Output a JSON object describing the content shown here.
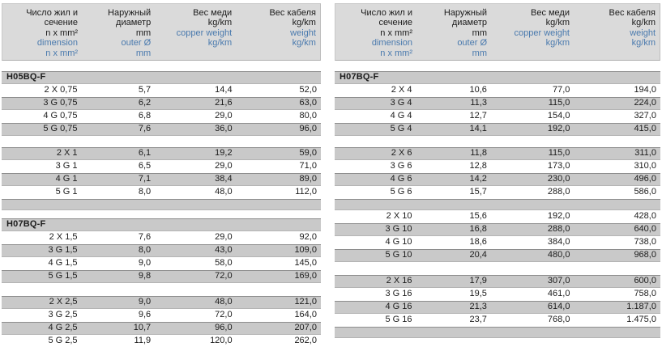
{
  "colors": {
    "blue_text": "#4a7aae",
    "row_gray": "#c9c9c9",
    "header_gray": "#dadada",
    "text_black": "#1b1b1b"
  },
  "header": {
    "columns": [
      {
        "black": [
          "Число жил и",
          "сечение",
          "n x mm²"
        ],
        "blue": [
          "dimension",
          "n x mm²"
        ]
      },
      {
        "black": [
          "Наружный",
          "диаметр",
          "mm"
        ],
        "blue": [
          "outer Ø",
          "mm"
        ]
      },
      {
        "black": [
          "Вес меди",
          "kg/km"
        ],
        "blue": [
          "copper weight",
          "kg/km"
        ]
      },
      {
        "black": [
          "Вес кабеля",
          "kg/km"
        ],
        "blue": [
          "weight",
          "kg/km"
        ]
      }
    ]
  },
  "tables": [
    {
      "side": "left",
      "blocks": [
        {
          "type": "section",
          "label": "H05BQ-F"
        },
        {
          "type": "rows",
          "start_shade": "white",
          "rows": [
            [
              "2 X 0,75",
              "5,7",
              "14,4",
              "52,0"
            ],
            [
              "3 G 0,75",
              "6,2",
              "21,6",
              "63,0"
            ],
            [
              "4 G 0,75",
              "6,8",
              "29,0",
              "80,0"
            ],
            [
              "5 G 0,75",
              "7,6",
              "36,0",
              "96,0"
            ]
          ]
        },
        {
          "type": "gap"
        },
        {
          "type": "rows",
          "start_shade": "gray",
          "rows": [
            [
              "2 X 1",
              "6,1",
              "19,2",
              "59,0"
            ],
            [
              "3 G 1",
              "6,5",
              "29,0",
              "71,0"
            ],
            [
              "4 G 1",
              "7,1",
              "38,4",
              "89,0"
            ],
            [
              "5 G 1",
              "8,0",
              "48,0",
              "112,0"
            ]
          ]
        },
        {
          "type": "spacer"
        },
        {
          "type": "gap_small"
        },
        {
          "type": "section",
          "label": "H07BQ-F"
        },
        {
          "type": "rows",
          "start_shade": "white",
          "rows": [
            [
              "2 X 1,5",
              "7,6",
              "29,0",
              "92,0"
            ],
            [
              "3 G 1,5",
              "8,0",
              "43,0",
              "109,0"
            ],
            [
              "4 G 1,5",
              "9,0",
              "58,0",
              "145,0"
            ],
            [
              "5 G 1,5",
              "9,8",
              "72,0",
              "169,0"
            ]
          ]
        },
        {
          "type": "gap_large"
        },
        {
          "type": "rows",
          "start_shade": "gray",
          "rows": [
            [
              "2 X 2,5",
              "9,0",
              "48,0",
              "121,0"
            ],
            [
              "3 G 2,5",
              "9,6",
              "72,0",
              "164,0"
            ],
            [
              "4 G 2,5",
              "10,7",
              "96,0",
              "207,0"
            ],
            [
              "5 G 2,5",
              "11,9",
              "120,0",
              "262,0"
            ]
          ]
        }
      ]
    },
    {
      "side": "right",
      "blocks": [
        {
          "type": "section",
          "label": "H07BQ-F"
        },
        {
          "type": "rows",
          "start_shade": "white",
          "rows": [
            [
              "2 X 4",
              "10,6",
              "77,0",
              "194,0"
            ],
            [
              "3 G 4",
              "11,3",
              "115,0",
              "224,0"
            ],
            [
              "4 G 4",
              "12,7",
              "154,0",
              "327,0"
            ],
            [
              "5 G 4",
              "14,1",
              "192,0",
              "415,0"
            ]
          ]
        },
        {
          "type": "gap"
        },
        {
          "type": "rows",
          "start_shade": "gray",
          "rows": [
            [
              "2 X 6",
              "11,8",
              "115,0",
              "311,0"
            ],
            [
              "3 G 6",
              "12,8",
              "173,0",
              "310,0"
            ],
            [
              "4 G 6",
              "14,2",
              "230,0",
              "496,0"
            ],
            [
              "5 G 6",
              "15,7",
              "288,0",
              "586,0"
            ]
          ]
        },
        {
          "type": "spacer"
        },
        {
          "type": "rows",
          "start_shade": "white",
          "rows": [
            [
              "2 X 10",
              "15,6",
              "192,0",
              "428,0"
            ],
            [
              "3 G 10",
              "16,8",
              "288,0",
              "640,0"
            ],
            [
              "4 G 10",
              "18,6",
              "384,0",
              "738,0"
            ],
            [
              "5 G 10",
              "20,4",
              "480,0",
              "968,0"
            ]
          ]
        },
        {
          "type": "gap_large"
        },
        {
          "type": "rows",
          "start_shade": "gray",
          "rows": [
            [
              "2 X 16",
              "17,9",
              "307,0",
              "600,0"
            ],
            [
              "3 G 16",
              "19,5",
              "461,0",
              "758,0"
            ],
            [
              "4 G 16",
              "21,3",
              "614,0",
              "1.187,0"
            ],
            [
              "5 G 16",
              "23,7",
              "768,0",
              "1.475,0"
            ]
          ]
        },
        {
          "type": "spacer"
        }
      ]
    }
  ]
}
